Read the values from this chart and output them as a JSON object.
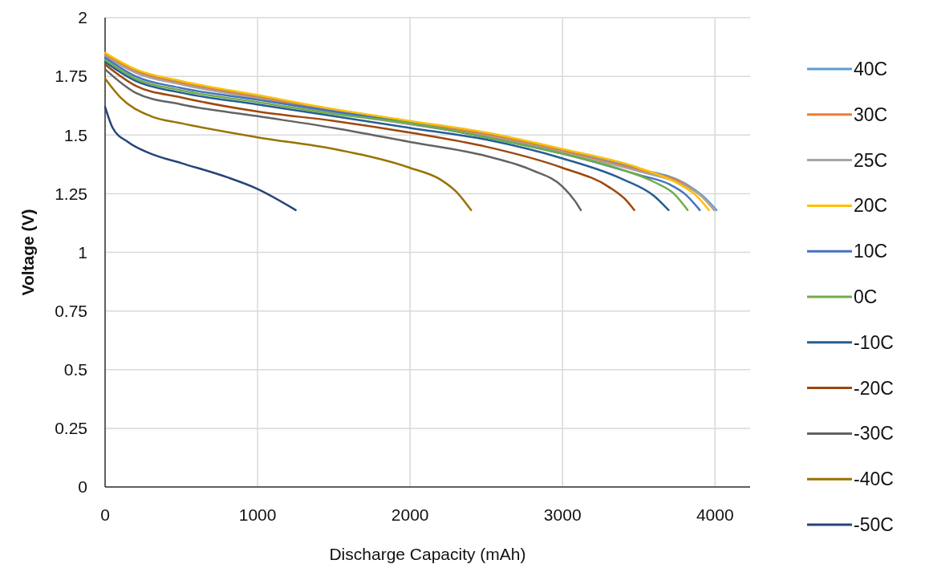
{
  "chart_data": {
    "type": "line",
    "xlabel": "Discharge Capacity (mAh)",
    "ylabel": "Voltage (V)",
    "xlim": [
      0,
      4230
    ],
    "xticks": [
      0,
      1000,
      2000,
      3000,
      4000
    ],
    "ylim": [
      0,
      2
    ],
    "yticks": [
      0,
      0.25,
      0.5,
      0.75,
      1,
      1.25,
      1.5,
      1.75,
      2
    ],
    "grid": true,
    "legend": "right",
    "line_style": "solid",
    "marker": "none",
    "series": [
      {
        "name": "40C",
        "color": "#5b9bd5",
        "x": [
          0,
          200,
          500,
          1000,
          1500,
          2000,
          2500,
          3000,
          3500,
          3800,
          3920,
          4010
        ],
        "values": [
          1.845,
          1.775,
          1.725,
          1.665,
          1.605,
          1.555,
          1.505,
          1.435,
          1.355,
          1.295,
          1.24,
          1.18
        ]
      },
      {
        "name": "30C",
        "color": "#ed7d31",
        "x": [
          0,
          200,
          500,
          1000,
          1500,
          2000,
          2500,
          3000,
          3500,
          3800,
          3910,
          3995
        ],
        "values": [
          1.84,
          1.77,
          1.72,
          1.66,
          1.6,
          1.55,
          1.5,
          1.43,
          1.35,
          1.29,
          1.24,
          1.18
        ]
      },
      {
        "name": "25C",
        "color": "#a5a5a5",
        "x": [
          0,
          200,
          500,
          1000,
          1500,
          2000,
          2500,
          3000,
          3500,
          3800,
          3910,
          4000
        ],
        "values": [
          1.835,
          1.765,
          1.715,
          1.655,
          1.595,
          1.545,
          1.495,
          1.425,
          1.345,
          1.285,
          1.24,
          1.18
        ]
      },
      {
        "name": "20C",
        "color": "#ffc000",
        "x": [
          0,
          200,
          500,
          1000,
          1500,
          2000,
          2500,
          3000,
          3500,
          3780,
          3880,
          3960
        ],
        "values": [
          1.85,
          1.78,
          1.73,
          1.67,
          1.61,
          1.56,
          1.51,
          1.44,
          1.36,
          1.285,
          1.24,
          1.18
        ]
      },
      {
        "name": "10C",
        "color": "#4472c4",
        "x": [
          0,
          200,
          500,
          1000,
          1500,
          2000,
          2500,
          3000,
          3500,
          3700,
          3800,
          3900
        ],
        "values": [
          1.83,
          1.75,
          1.7,
          1.65,
          1.6,
          1.55,
          1.49,
          1.42,
          1.33,
          1.29,
          1.25,
          1.18
        ]
      },
      {
        "name": "0C",
        "color": "#70ad47",
        "x": [
          0,
          200,
          500,
          1000,
          1500,
          2000,
          2500,
          3000,
          3400,
          3600,
          3730,
          3820
        ],
        "values": [
          1.82,
          1.74,
          1.69,
          1.64,
          1.59,
          1.55,
          1.49,
          1.42,
          1.35,
          1.3,
          1.25,
          1.18
        ]
      },
      {
        "name": "-10C",
        "color": "#255e91",
        "x": [
          0,
          200,
          500,
          1000,
          1500,
          2000,
          2500,
          3000,
          3400,
          3600,
          3695
        ],
        "values": [
          1.81,
          1.73,
          1.68,
          1.63,
          1.58,
          1.53,
          1.48,
          1.4,
          1.31,
          1.24,
          1.18
        ]
      },
      {
        "name": "-20C",
        "color": "#9e480e",
        "x": [
          0,
          200,
          500,
          1000,
          1500,
          2000,
          2500,
          3000,
          3300,
          3420,
          3470
        ],
        "values": [
          1.8,
          1.71,
          1.66,
          1.6,
          1.56,
          1.51,
          1.45,
          1.36,
          1.28,
          1.22,
          1.18
        ]
      },
      {
        "name": "-30C",
        "color": "#636363",
        "x": [
          0,
          200,
          500,
          1000,
          1500,
          2000,
          2500,
          2800,
          3000,
          3080,
          3120
        ],
        "values": [
          1.78,
          1.68,
          1.63,
          1.58,
          1.53,
          1.47,
          1.41,
          1.35,
          1.28,
          1.22,
          1.18
        ]
      },
      {
        "name": "-40C",
        "color": "#997300",
        "x": [
          0,
          100,
          300,
          500,
          1000,
          1500,
          2000,
          2200,
          2300,
          2400
        ],
        "values": [
          1.74,
          1.66,
          1.58,
          1.55,
          1.49,
          1.44,
          1.36,
          1.31,
          1.26,
          1.18
        ]
      },
      {
        "name": "-50C",
        "color": "#264478",
        "x": [
          0,
          50,
          150,
          300,
          500,
          800,
          1000,
          1250
        ],
        "values": [
          1.62,
          1.53,
          1.47,
          1.42,
          1.38,
          1.32,
          1.27,
          1.18
        ]
      }
    ]
  }
}
